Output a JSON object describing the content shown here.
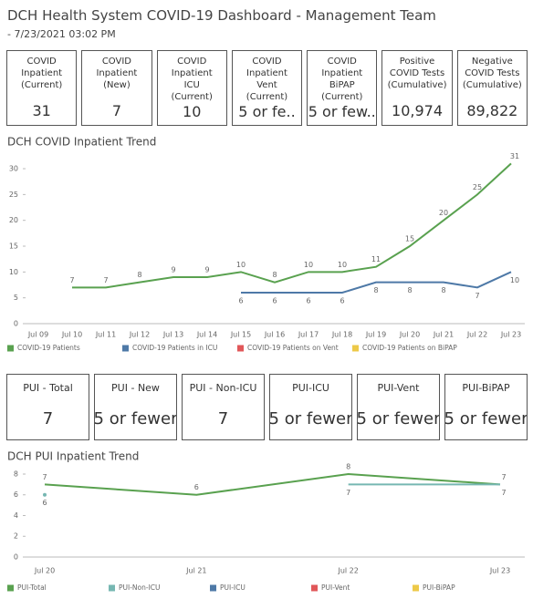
{
  "header": {
    "title": "DCH Health System COVID-19 Dashboard - Management Team",
    "subtitle": "- 7/23/2021 03:02 PM"
  },
  "kpis": [
    {
      "label": "COVID Inpatient (Current)",
      "value": "31"
    },
    {
      "label": "COVID Inpatient (New)",
      "value": "7"
    },
    {
      "label": "COVID Inpatient ICU (Current)",
      "value": "10"
    },
    {
      "label": "COVID Inpatient Vent (Current)",
      "value": "5 or fe.."
    },
    {
      "label": "COVID Inpatient BiPAP (Current)",
      "value": "5 or few.."
    },
    {
      "label": "Positive COVID Tests (Cumulative)",
      "value": "10,974"
    },
    {
      "label": "Negative COVID Tests (Cumulative)",
      "value": "89,822"
    }
  ],
  "chart_data": [
    {
      "type": "line",
      "title": "DCH COVID Inpatient Trend",
      "categories": [
        "Jul 09",
        "Jul 10",
        "Jul 11",
        "Jul 12",
        "Jul 13",
        "Jul 14",
        "Jul 15",
        "Jul 16",
        "Jul 17",
        "Jul 18",
        "Jul 19",
        "Jul 20",
        "Jul 21",
        "Jul 22",
        "Jul 23"
      ],
      "series": [
        {
          "name": "COVID-19 Patients",
          "color": "#59a14f",
          "values": [
            null,
            7,
            7,
            8,
            9,
            9,
            10,
            8,
            10,
            10,
            11,
            15,
            20,
            25,
            31
          ]
        },
        {
          "name": "COVID-19 Patients in ICU",
          "color": "#4e79a7",
          "values": [
            null,
            null,
            null,
            null,
            null,
            null,
            6,
            6,
            6,
            6,
            8,
            8,
            8,
            7,
            10
          ]
        },
        {
          "name": "COVID-19 Patients on Vent",
          "color": "#e15759",
          "values": [
            null,
            null,
            null,
            null,
            null,
            null,
            null,
            null,
            null,
            null,
            null,
            null,
            null,
            null,
            null
          ]
        },
        {
          "name": "COVID-19 Patients on BiPAP",
          "color": "#edc948",
          "values": [
            null,
            null,
            null,
            null,
            null,
            null,
            null,
            null,
            null,
            null,
            null,
            null,
            null,
            null,
            null
          ]
        }
      ],
      "ylim": [
        0,
        32
      ],
      "yticks": [
        0,
        5,
        10,
        15,
        20,
        25,
        30
      ]
    },
    {
      "type": "line",
      "title": "DCH PUI Inpatient Trend",
      "categories": [
        "Jul 20",
        "Jul 21",
        "Jul 22",
        "Jul 23"
      ],
      "series": [
        {
          "name": "PUI-Total",
          "color": "#59a14f",
          "values": [
            7,
            6,
            8,
            7
          ]
        },
        {
          "name": "PUI-Non-ICU",
          "color": "#76b7b2",
          "values": [
            6,
            null,
            7,
            7
          ]
        },
        {
          "name": "PUI-ICU",
          "color": "#4e79a7",
          "values": [
            null,
            null,
            null,
            null
          ]
        },
        {
          "name": "PUI-Vent",
          "color": "#e15759",
          "values": [
            null,
            null,
            null,
            null
          ]
        },
        {
          "name": "PUI-BiPAP",
          "color": "#edc948",
          "values": [
            null,
            null,
            null,
            null
          ]
        }
      ],
      "ylim": [
        0,
        8.5
      ],
      "yticks": [
        0,
        2,
        4,
        6,
        8
      ]
    }
  ],
  "pui_kpis": [
    {
      "label": "PUI - Total",
      "value": "7"
    },
    {
      "label": "PUI - New",
      "value": "5 or fewer"
    },
    {
      "label": "PUI - Non-ICU",
      "value": "7"
    },
    {
      "label": "PUI-ICU",
      "value": "5 or fewer"
    },
    {
      "label": "PUI-Vent",
      "value": "5 or fewer"
    },
    {
      "label": "PUI-BiPAP",
      "value": "5 or fewer"
    }
  ]
}
